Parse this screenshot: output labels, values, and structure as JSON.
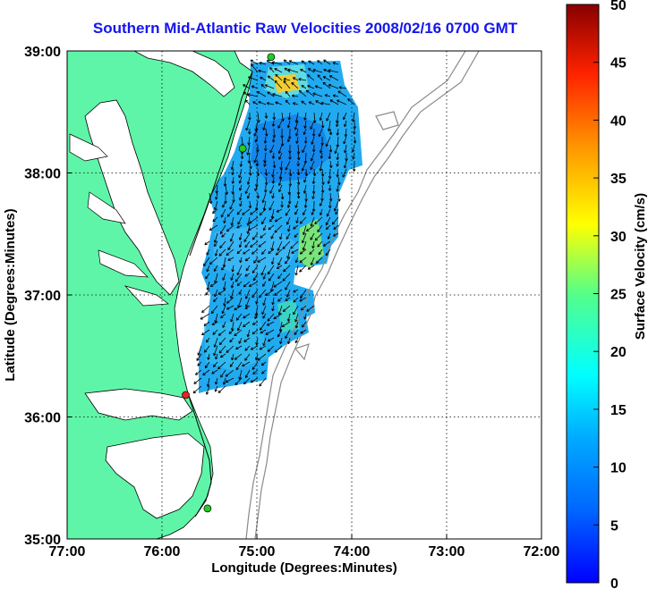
{
  "title": "Southern Mid-Atlantic Raw Velocities 2008/02/16 0700 GMT",
  "map": {
    "xlabel": "Longitude (Degrees:Minutes)",
    "ylabel": "Latitude (Degrees:Minutes)",
    "x_ticks": [
      "77:00",
      "76:00",
      "75:00",
      "74:00",
      "73:00",
      "72:00"
    ],
    "y_ticks": [
      "39:00",
      "38:00",
      "37:00",
      "36:00",
      "35:00"
    ],
    "lon_range": [
      -77,
      -72
    ],
    "lat_range": [
      35,
      39
    ],
    "grid": "dotted",
    "land_color": "#5ff5a8",
    "coastline_color": "#000000",
    "bathymetry_color": "#8a8a8a",
    "stations": [
      {
        "lon": -74.85,
        "lat": 38.95,
        "color": "#22cc22"
      },
      {
        "lon": -75.15,
        "lat": 38.2,
        "color": "#22cc22"
      },
      {
        "lon": -75.75,
        "lat": 36.18,
        "color": "#ee2222"
      },
      {
        "lon": -75.52,
        "lat": 35.25,
        "color": "#22cc22"
      }
    ]
  },
  "colorbar": {
    "label": "Surface Velocity (cm/s)",
    "ticks": [
      "0",
      "5",
      "10",
      "15",
      "20",
      "25",
      "30",
      "35",
      "40",
      "45",
      "50"
    ],
    "range": [
      0,
      50
    ],
    "colormap": "jet"
  }
}
